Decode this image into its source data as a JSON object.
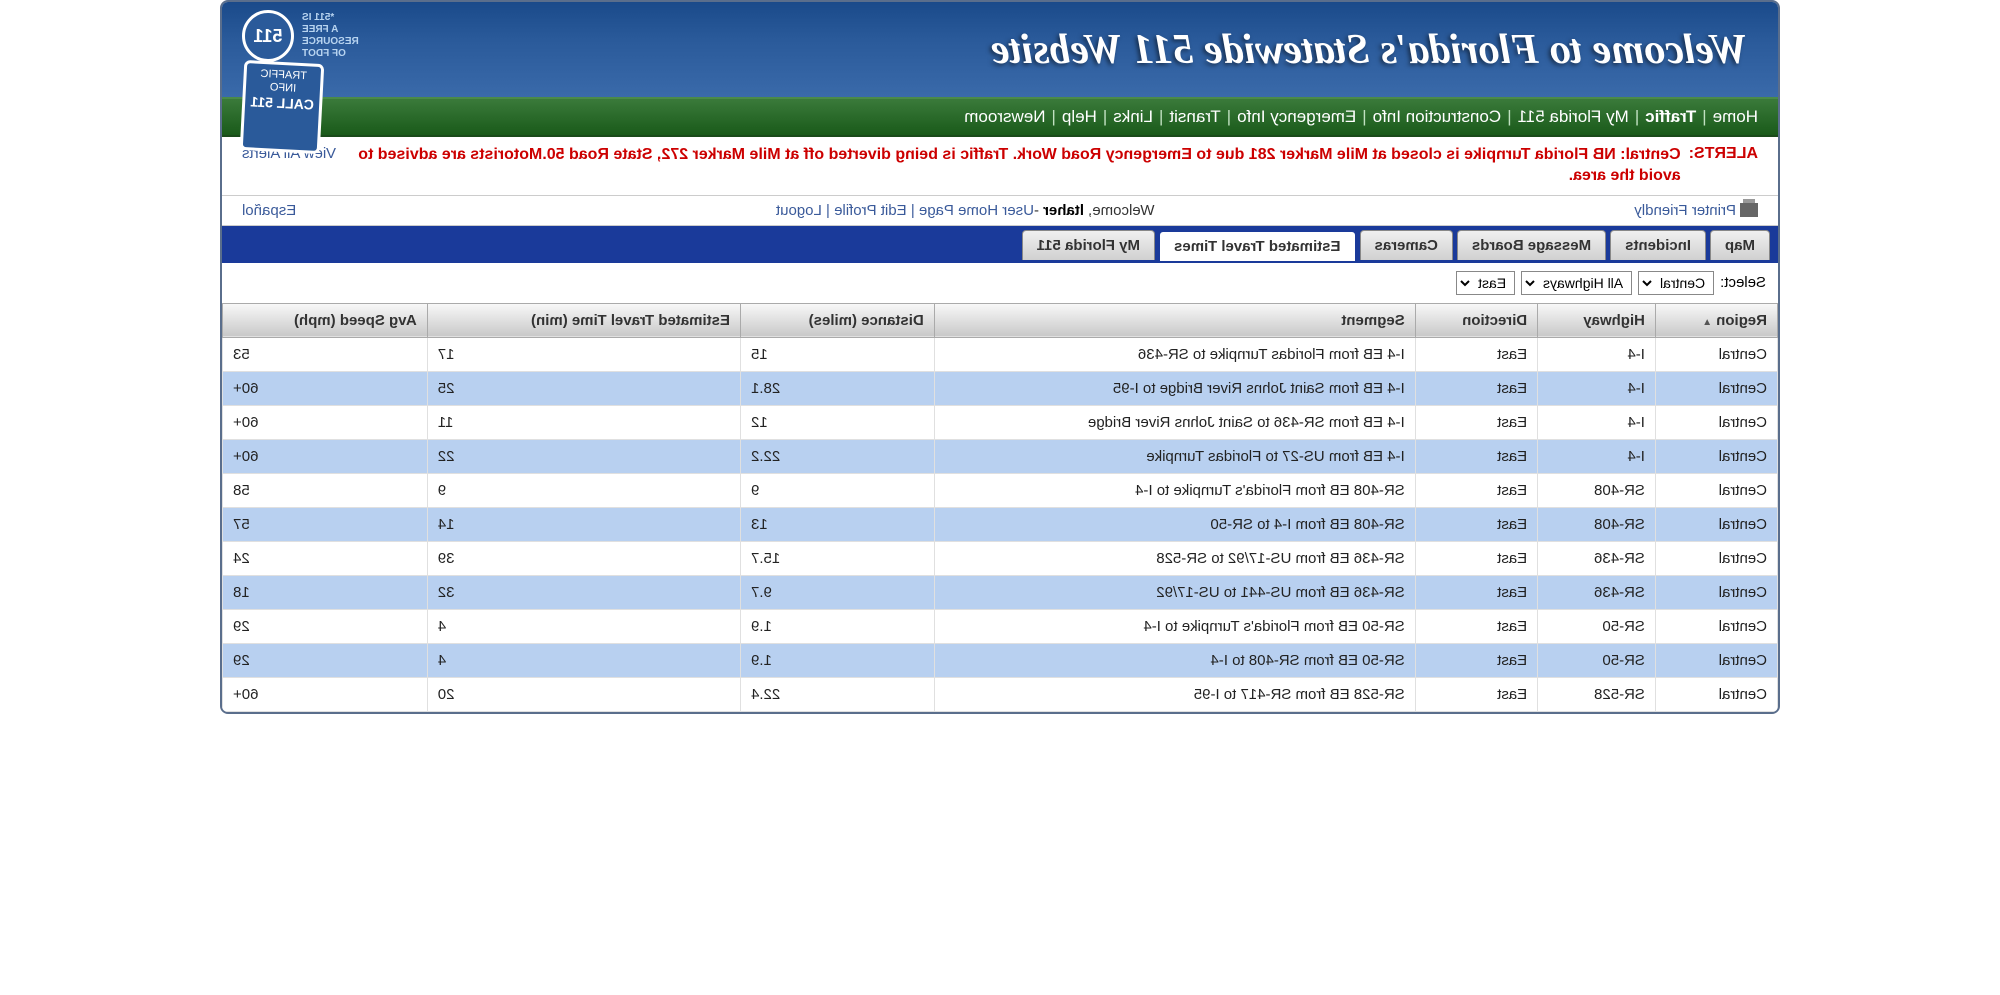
{
  "header": {
    "title": "Welcome to Florida's Statewide 511 Website",
    "logo_text": "*511 IS\nA FREE\nRESOURCE\nOF FDOT",
    "logo_badge": "511",
    "sign_line1": "TRAFFIC",
    "sign_line2": "INFO",
    "sign_line3": "CALL 511"
  },
  "nav": {
    "items": [
      "Home",
      "Traffic",
      "My Florida 511",
      "Construction Info",
      "Emergency Info",
      "Transit",
      "Links",
      "Help",
      "Newsroom"
    ],
    "bold_index": 1
  },
  "alerts": {
    "label": "ALERTS:",
    "text": "Central: NB Florida Turnpike is closed at Mile Marker 281 due to Emergency Road Work. Traffic is being diverted off at Mile Marker 272, State Road 50.Motorists are advised to avoid the area.",
    "view_all": "View All Alerts"
  },
  "user_bar": {
    "printer": "Printer Friendly",
    "welcome_prefix": "Welcome, ",
    "welcome_name": "ltaher",
    "welcome_suffix": " - ",
    "links": [
      "User Home Page",
      "Edit Profile",
      "Logout"
    ],
    "espanol": "Español"
  },
  "tabs": {
    "items": [
      "Map",
      "Incidents",
      "Message Boards",
      "Cameras",
      "Estimated Travel Times",
      "My Florida 511"
    ],
    "active_index": 4
  },
  "filter": {
    "label": "Select:",
    "region": "Central",
    "highway": "All Highways",
    "direction": "East"
  },
  "table": {
    "columns": [
      "Region",
      "Highway",
      "Direction",
      "Segment",
      "Distance (miles)",
      "Estimated Travel Time (min)",
      "Avg Speed (mph)"
    ],
    "sort_col": 0,
    "rows": [
      {
        "region": "Central",
        "highway": "I-4",
        "direction": "East",
        "segment": "I-4 EB from Floridas Turnpike to SR-436",
        "distance": "15",
        "time": "17",
        "speed": "53"
      },
      {
        "region": "Central",
        "highway": "I-4",
        "direction": "East",
        "segment": "I-4 EB from Saint Johns River Bridge to I-95",
        "distance": "28.1",
        "time": "25",
        "speed": "60+"
      },
      {
        "region": "Central",
        "highway": "I-4",
        "direction": "East",
        "segment": "I-4 EB from SR-436 to Saint Johns River Bridge",
        "distance": "12",
        "time": "11",
        "speed": "60+"
      },
      {
        "region": "Central",
        "highway": "I-4",
        "direction": "East",
        "segment": "I-4 EB from US-27 to Floridas Turnpike",
        "distance": "22.2",
        "time": "22",
        "speed": "60+"
      },
      {
        "region": "Central",
        "highway": "SR-408",
        "direction": "East",
        "segment": "SR-408 EB from Florida's Turnpike to I-4",
        "distance": "9",
        "time": "9",
        "speed": "58"
      },
      {
        "region": "Central",
        "highway": "SR-408",
        "direction": "East",
        "segment": "SR-408 EB from I-4 to SR-50",
        "distance": "13",
        "time": "14",
        "speed": "57"
      },
      {
        "region": "Central",
        "highway": "SR-436",
        "direction": "East",
        "segment": "SR-436 EB from US-17/92 to SR-528",
        "distance": "15.7",
        "time": "39",
        "speed": "24"
      },
      {
        "region": "Central",
        "highway": "SR-436",
        "direction": "East",
        "segment": "SR-436 EB from US-441 to US-17/92",
        "distance": "9.7",
        "time": "32",
        "speed": "18"
      },
      {
        "region": "Central",
        "highway": "SR-50",
        "direction": "East",
        "segment": "SR-50 EB from Florida's Turnpike to I-4",
        "distance": "1.9",
        "time": "4",
        "speed": "29"
      },
      {
        "region": "Central",
        "highway": "SR-50",
        "direction": "East",
        "segment": "SR-50 EB from SR-408 to I-4",
        "distance": "1.9",
        "time": "4",
        "speed": "29"
      },
      {
        "region": "Central",
        "highway": "SR-528",
        "direction": "East",
        "segment": "SR-528 EB from SR-417 to I-95",
        "distance": "22.4",
        "time": "20",
        "speed": "60+"
      }
    ]
  },
  "colors": {
    "header_bg": "#2a5a9a",
    "nav_bg": "#2a6a2a",
    "alert_color": "#c00",
    "link_color": "#3a5a9a",
    "tab_bar_bg": "#1a3a9a",
    "row_even_bg": "#b8d0f0",
    "row_odd_bg": "#ffffff"
  }
}
